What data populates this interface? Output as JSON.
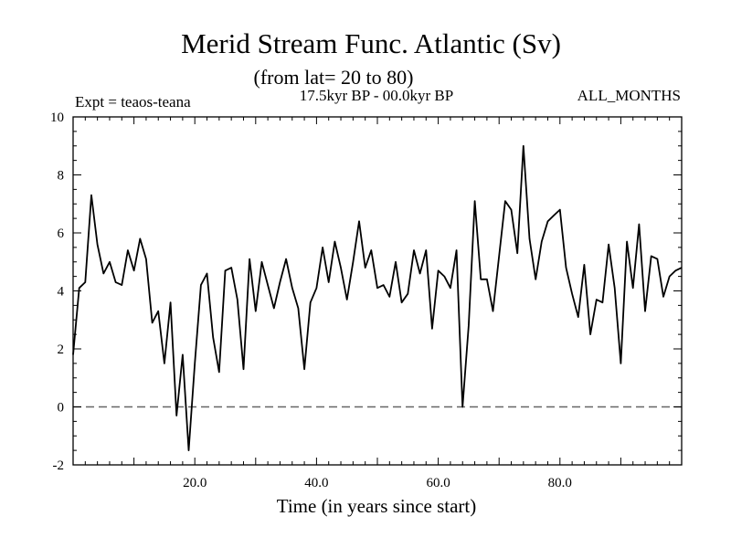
{
  "chart_data": {
    "type": "line",
    "title": "Merid Stream Func. Atlantic (Sv)",
    "subtitle": "(from lat= 20 to 80)",
    "period": "17.5kyr BP - 00.0kyr BP",
    "experiment": "Expt = teaos-teana",
    "months": "ALL_MONTHS",
    "xlabel": "Time (in years since start)",
    "ylabel": "",
    "xlim": [
      0,
      100
    ],
    "ylim": [
      -2,
      10
    ],
    "x_ticks": [
      20,
      40,
      60,
      80
    ],
    "x_tick_labels": [
      "20.0",
      "40.0",
      "60.0",
      "80.0"
    ],
    "y_ticks": [
      -2,
      0,
      2,
      4,
      6,
      8,
      10
    ],
    "y_tick_labels": [
      "-2",
      "0",
      "2",
      "4",
      "6",
      "8",
      "10"
    ],
    "reference_line": 0,
    "series": [
      {
        "name": "Merid Stream Func.",
        "x": [
          0,
          1,
          2,
          3,
          4,
          5,
          6,
          7,
          8,
          9,
          10,
          11,
          12,
          13,
          14,
          15,
          16,
          17,
          18,
          19,
          20,
          21,
          22,
          23,
          24,
          25,
          26,
          27,
          28,
          29,
          30,
          31,
          32,
          33,
          34,
          35,
          36,
          37,
          38,
          39,
          40,
          41,
          42,
          43,
          44,
          45,
          46,
          47,
          48,
          49,
          50,
          51,
          52,
          53,
          54,
          55,
          56,
          57,
          58,
          59,
          60,
          61,
          62,
          63,
          64,
          65,
          66,
          67,
          68,
          69,
          70,
          71,
          72,
          73,
          74,
          75,
          76,
          77,
          78,
          79,
          80,
          81,
          82,
          83,
          84,
          85,
          86,
          87,
          88,
          89,
          90,
          91,
          92,
          93,
          94,
          95,
          96,
          97,
          98,
          99,
          100
        ],
        "values": [
          1.8,
          4.1,
          4.3,
          7.3,
          5.6,
          4.6,
          5.0,
          4.3,
          4.2,
          5.4,
          4.7,
          5.8,
          5.1,
          2.9,
          3.3,
          1.5,
          3.6,
          -0.3,
          1.8,
          -1.5,
          1.5,
          4.2,
          4.6,
          2.4,
          1.2,
          4.7,
          4.8,
          3.7,
          1.3,
          5.1,
          3.3,
          5.0,
          4.2,
          3.4,
          4.3,
          5.1,
          4.1,
          3.4,
          1.3,
          3.6,
          4.1,
          5.5,
          4.3,
          5.7,
          4.8,
          3.7,
          5.0,
          6.4,
          4.8,
          5.4,
          4.1,
          4.2,
          3.8,
          5.0,
          3.6,
          3.9,
          5.4,
          4.6,
          5.4,
          2.7,
          4.7,
          4.5,
          4.1,
          5.4,
          0.0,
          2.8,
          7.1,
          4.4,
          4.4,
          3.3,
          5.2,
          7.1,
          6.8,
          5.3,
          9.0,
          5.8,
          4.4,
          5.7,
          6.4,
          6.6,
          6.8,
          4.8,
          3.9,
          3.1,
          4.9,
          2.5,
          3.7,
          3.6,
          5.6,
          4.1,
          1.5,
          5.7,
          4.1,
          6.3,
          3.3,
          5.2,
          5.1,
          3.8,
          4.5,
          4.7,
          4.8
        ]
      }
    ]
  }
}
